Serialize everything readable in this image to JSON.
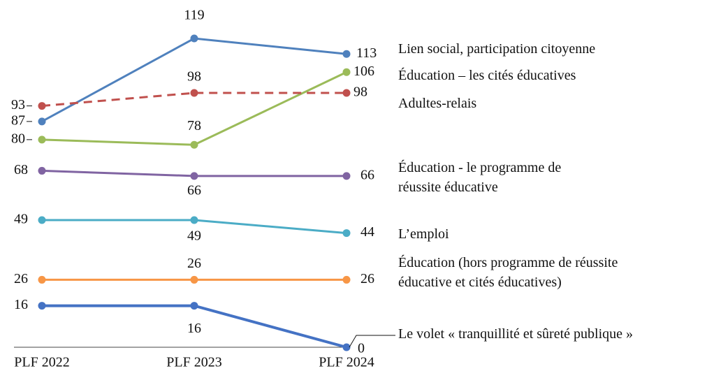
{
  "chart_data": {
    "type": "line",
    "categories": [
      "PLF 2022",
      "PLF 2023",
      "PLF 2024"
    ],
    "series": [
      {
        "name": "Lien social, participation citoyenne",
        "color": "#4f81bd",
        "values": [
          87,
          119,
          113
        ]
      },
      {
        "name": "Éducation – les cités éducatives",
        "color": "#9bbb59",
        "values": [
          80,
          78,
          106
        ]
      },
      {
        "name": "Adultes-relais",
        "color": "#c0504d",
        "dashed": true,
        "values": [
          93,
          98,
          98
        ]
      },
      {
        "name": "Éducation - le programme de réussite éducative",
        "color": "#8064a2",
        "values": [
          68,
          66,
          66
        ]
      },
      {
        "name": "L’emploi",
        "color": "#4bacc6",
        "values": [
          49,
          49,
          44
        ]
      },
      {
        "name": "Éducation (hors programme de réussite éducative et cités éducatives)",
        "color": "#f79646",
        "values": [
          26,
          26,
          26
        ]
      },
      {
        "name": "Le volet « tranquillité et sûreté publique »",
        "color": "#4472c4",
        "values": [
          16,
          16,
          0
        ]
      }
    ]
  }
}
